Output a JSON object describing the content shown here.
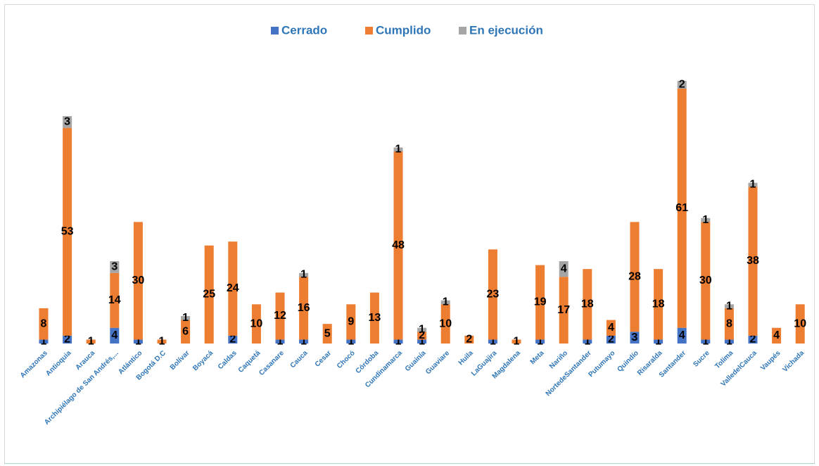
{
  "chart_data": {
    "type": "stacked_bar",
    "categories": [
      "Amazonas",
      "Antioquia",
      "Arauca",
      "Archipiélago de San Andrés,...",
      "Atlántico",
      "Bogotá D.C",
      "Bolívar",
      "Boyacá",
      "Caldas",
      "Caquetá",
      "Casanare",
      "Cauca",
      "Cesar",
      "Chocó",
      "Córdoba",
      "Cundinamarca",
      "Guainía",
      "Guaviare",
      "Huila",
      "LaGuajira",
      "Magdalena",
      "Meta",
      "Nariño",
      "NortedeSantander",
      "Putumayo",
      "Quindío",
      "Risaralda",
      "Santander",
      "Sucre",
      "Tolima",
      "ValledelCauca",
      "Vaupés",
      "Vichada"
    ],
    "series": [
      {
        "name": "Cerrado",
        "color": "#4472c4",
        "values": [
          1,
          2,
          null,
          4,
          1,
          null,
          null,
          null,
          2,
          null,
          1,
          1,
          null,
          1,
          null,
          1,
          1,
          null,
          null,
          1,
          null,
          1,
          null,
          1,
          2,
          3,
          1,
          4,
          1,
          1,
          2,
          null,
          null
        ]
      },
      {
        "name": "Cumplido",
        "color": "#ed7d31",
        "values": [
          8,
          53,
          1,
          14,
          30,
          1,
          6,
          25,
          24,
          10,
          12,
          16,
          5,
          9,
          13,
          48,
          2,
          10,
          2,
          23,
          1,
          19,
          17,
          18,
          4,
          28,
          18,
          61,
          30,
          8,
          38,
          4,
          10
        ]
      },
      {
        "name": "En ejecución",
        "color": "#a5a5a5",
        "values": [
          null,
          3,
          null,
          3,
          null,
          null,
          1,
          null,
          null,
          null,
          null,
          1,
          null,
          null,
          null,
          1,
          1,
          1,
          null,
          null,
          null,
          null,
          4,
          null,
          null,
          null,
          null,
          2,
          1,
          1,
          1,
          null,
          null
        ]
      }
    ],
    "legend": "top"
  }
}
